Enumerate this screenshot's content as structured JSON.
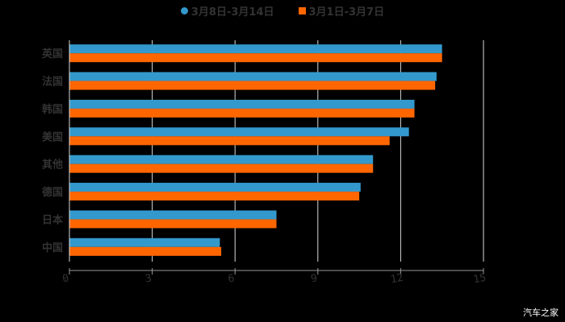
{
  "legend": {
    "series_1": "3月8日-3月14日",
    "series_2": "3月1日-3月7日"
  },
  "watermark": "汽车之家",
  "colors": {
    "series_1": "#3399cc",
    "series_2": "#ff6600",
    "grid": "#d9d9d9",
    "axis_text": "#333333"
  },
  "chart_data": {
    "type": "bar",
    "orientation": "horizontal",
    "title": "",
    "xlabel": "",
    "ylabel": "",
    "categories": [
      "英国",
      "法国",
      "韩国",
      "美国",
      "其他",
      "德国",
      "日本",
      "中国"
    ],
    "series": [
      {
        "name": "3月8日-3月14日",
        "color": "#3399cc",
        "values": [
          13.5,
          13.3,
          12.5,
          12.3,
          11.0,
          10.55,
          7.5,
          5.45
        ]
      },
      {
        "name": "3月1日-3月7日",
        "color": "#ff6600",
        "values": [
          13.5,
          13.25,
          12.5,
          11.6,
          11.0,
          10.5,
          7.5,
          5.5
        ]
      }
    ],
    "xlim": [
      0,
      15
    ],
    "xticks": [
      "0",
      "3",
      "6",
      "9",
      "12",
      "15"
    ],
    "grid": true,
    "legend_position": "top"
  }
}
